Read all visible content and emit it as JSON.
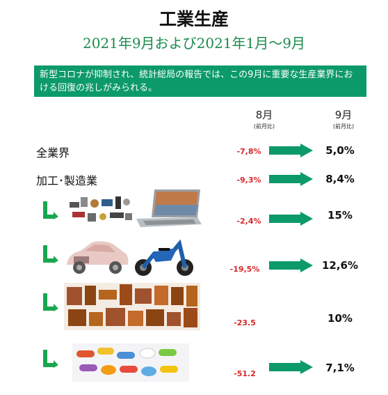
{
  "header": {
    "title": "工業生産",
    "subtitle": "2021年9月および2021年1月～9月"
  },
  "banner": {
    "text": "新型コロナが抑制され、統計総局の報告では、この9月に重要な生産業界における回復の兆しがみられる。"
  },
  "columns": {
    "august": {
      "month": "8月",
      "note": "(前月比)"
    },
    "september": {
      "month": "9月",
      "note": "(前月比)"
    }
  },
  "rows": [
    {
      "label": "全業界",
      "aug": "-7,8%",
      "sep": "5,0%"
    },
    {
      "label": "加工･製造業",
      "aug": "-9,3%",
      "sep": "8,4%"
    },
    {
      "label": "",
      "aug": "-2,4%",
      "sep": "15%"
    },
    {
      "label": "",
      "aug": "-19,5%",
      "sep": "12,6%"
    },
    {
      "label": "",
      "aug": "-23.5",
      "sep": "10%"
    },
    {
      "label": "",
      "aug": "-51.2",
      "sep": "7,1%"
    }
  ],
  "colors": {
    "accent": "#0c9a6a",
    "negative": "#d62828",
    "subtitle": "#1a8a4c",
    "connector": "#1aa64f"
  },
  "icons": [
    "right-arrow-icon",
    "sub-item-connector-icon"
  ]
}
